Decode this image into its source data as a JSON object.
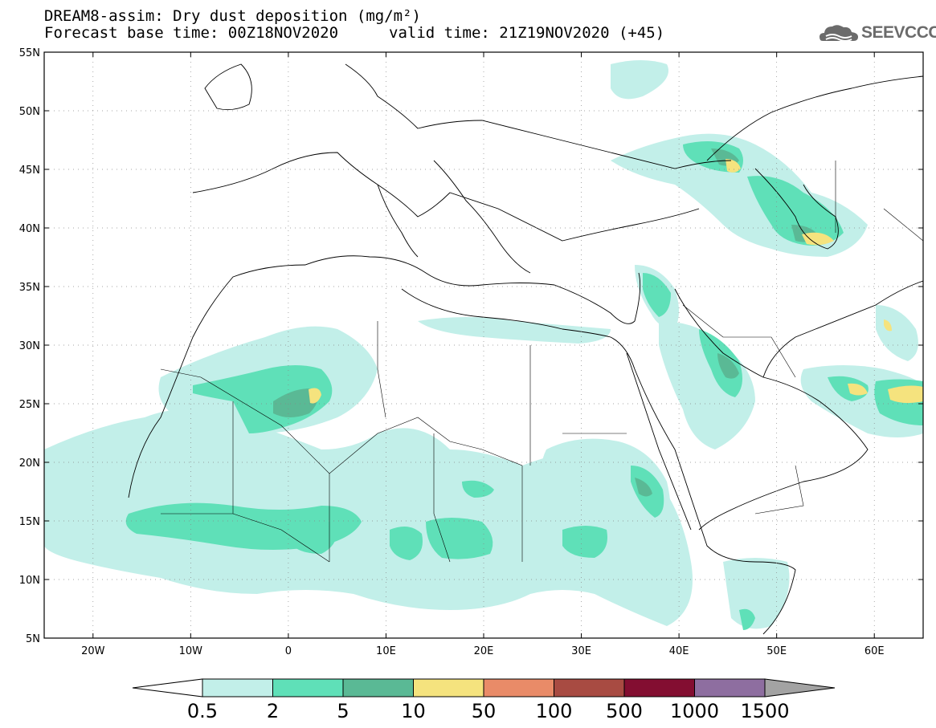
{
  "header": {
    "title": "DREAM8-assim: Dry dust deposition (mg/m²)",
    "base_time": "Forecast base time: 00Z18NOV2020",
    "valid_time": "valid time: 21Z19NOV2020 (+45)",
    "logo_text": "SEEVCCC"
  },
  "map": {
    "lon_range": [
      -25,
      65
    ],
    "lat_range": [
      5,
      55
    ],
    "grid": "dotted",
    "lat_ticks": [
      "55N",
      "50N",
      "45N",
      "40N",
      "35N",
      "30N",
      "25N",
      "20N",
      "15N",
      "10N",
      "5N"
    ],
    "lon_ticks": [
      "20W",
      "10W",
      "0",
      "10E",
      "20E",
      "30E",
      "40E",
      "50E",
      "60E"
    ]
  },
  "legend": {
    "labels": [
      "0.5",
      "2",
      "5",
      "10",
      "50",
      "100",
      "500",
      "1000",
      "1500"
    ],
    "colors": [
      "#ffffff",
      "#c2efe9",
      "#5fe0b8",
      "#5ab995",
      "#f5e37e",
      "#e98b68",
      "#a84b42",
      "#830e31",
      "#8e6ea0",
      "#a3a3a3"
    ]
  }
}
